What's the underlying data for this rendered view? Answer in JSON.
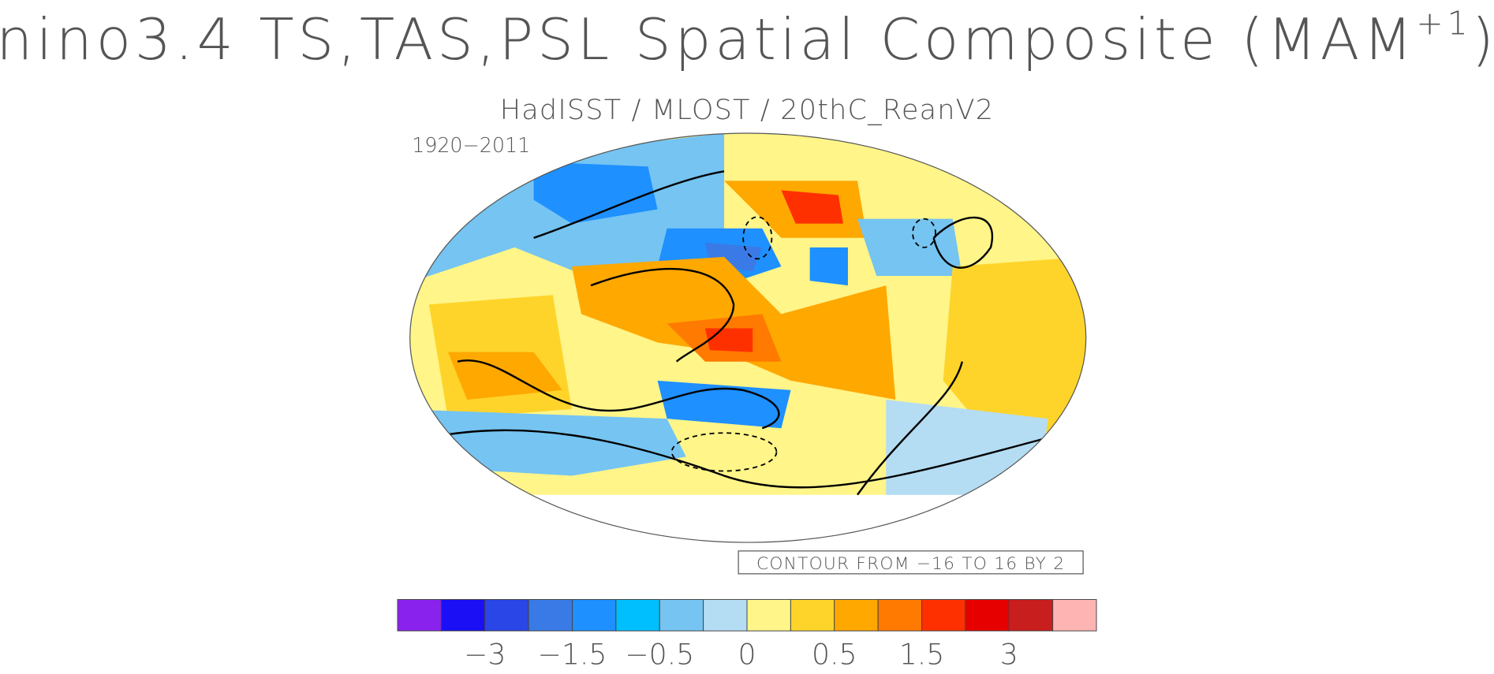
{
  "title": {
    "main": "nino3.4 TS,TAS,PSL Spatial Composite (MAM",
    "superscript": "+1",
    "close": ")"
  },
  "subtitle": "HadISST / MLOST / 20thC_ReanV2",
  "period": "1920−2011",
  "contour_note": "CONTOUR FROM −16 TO 16 BY 2",
  "colorbar": {
    "colors": [
      "#8a22ee",
      "#1a0ff5",
      "#2b46e6",
      "#3a7ae6",
      "#1e90ff",
      "#00bfff",
      "#75c4f2",
      "#b4dcf3",
      "#fff589",
      "#ffd42a",
      "#ffa800",
      "#ff7a00",
      "#ff3000",
      "#e60000",
      "#c81e1e",
      "#ffb4b4"
    ],
    "labels": [
      "−3",
      "−1.5",
      "−0.5",
      "0",
      "0.5",
      "1.5",
      "3"
    ],
    "label_boundaries": [
      2,
      4,
      6,
      8,
      10,
      12,
      14
    ]
  }
}
